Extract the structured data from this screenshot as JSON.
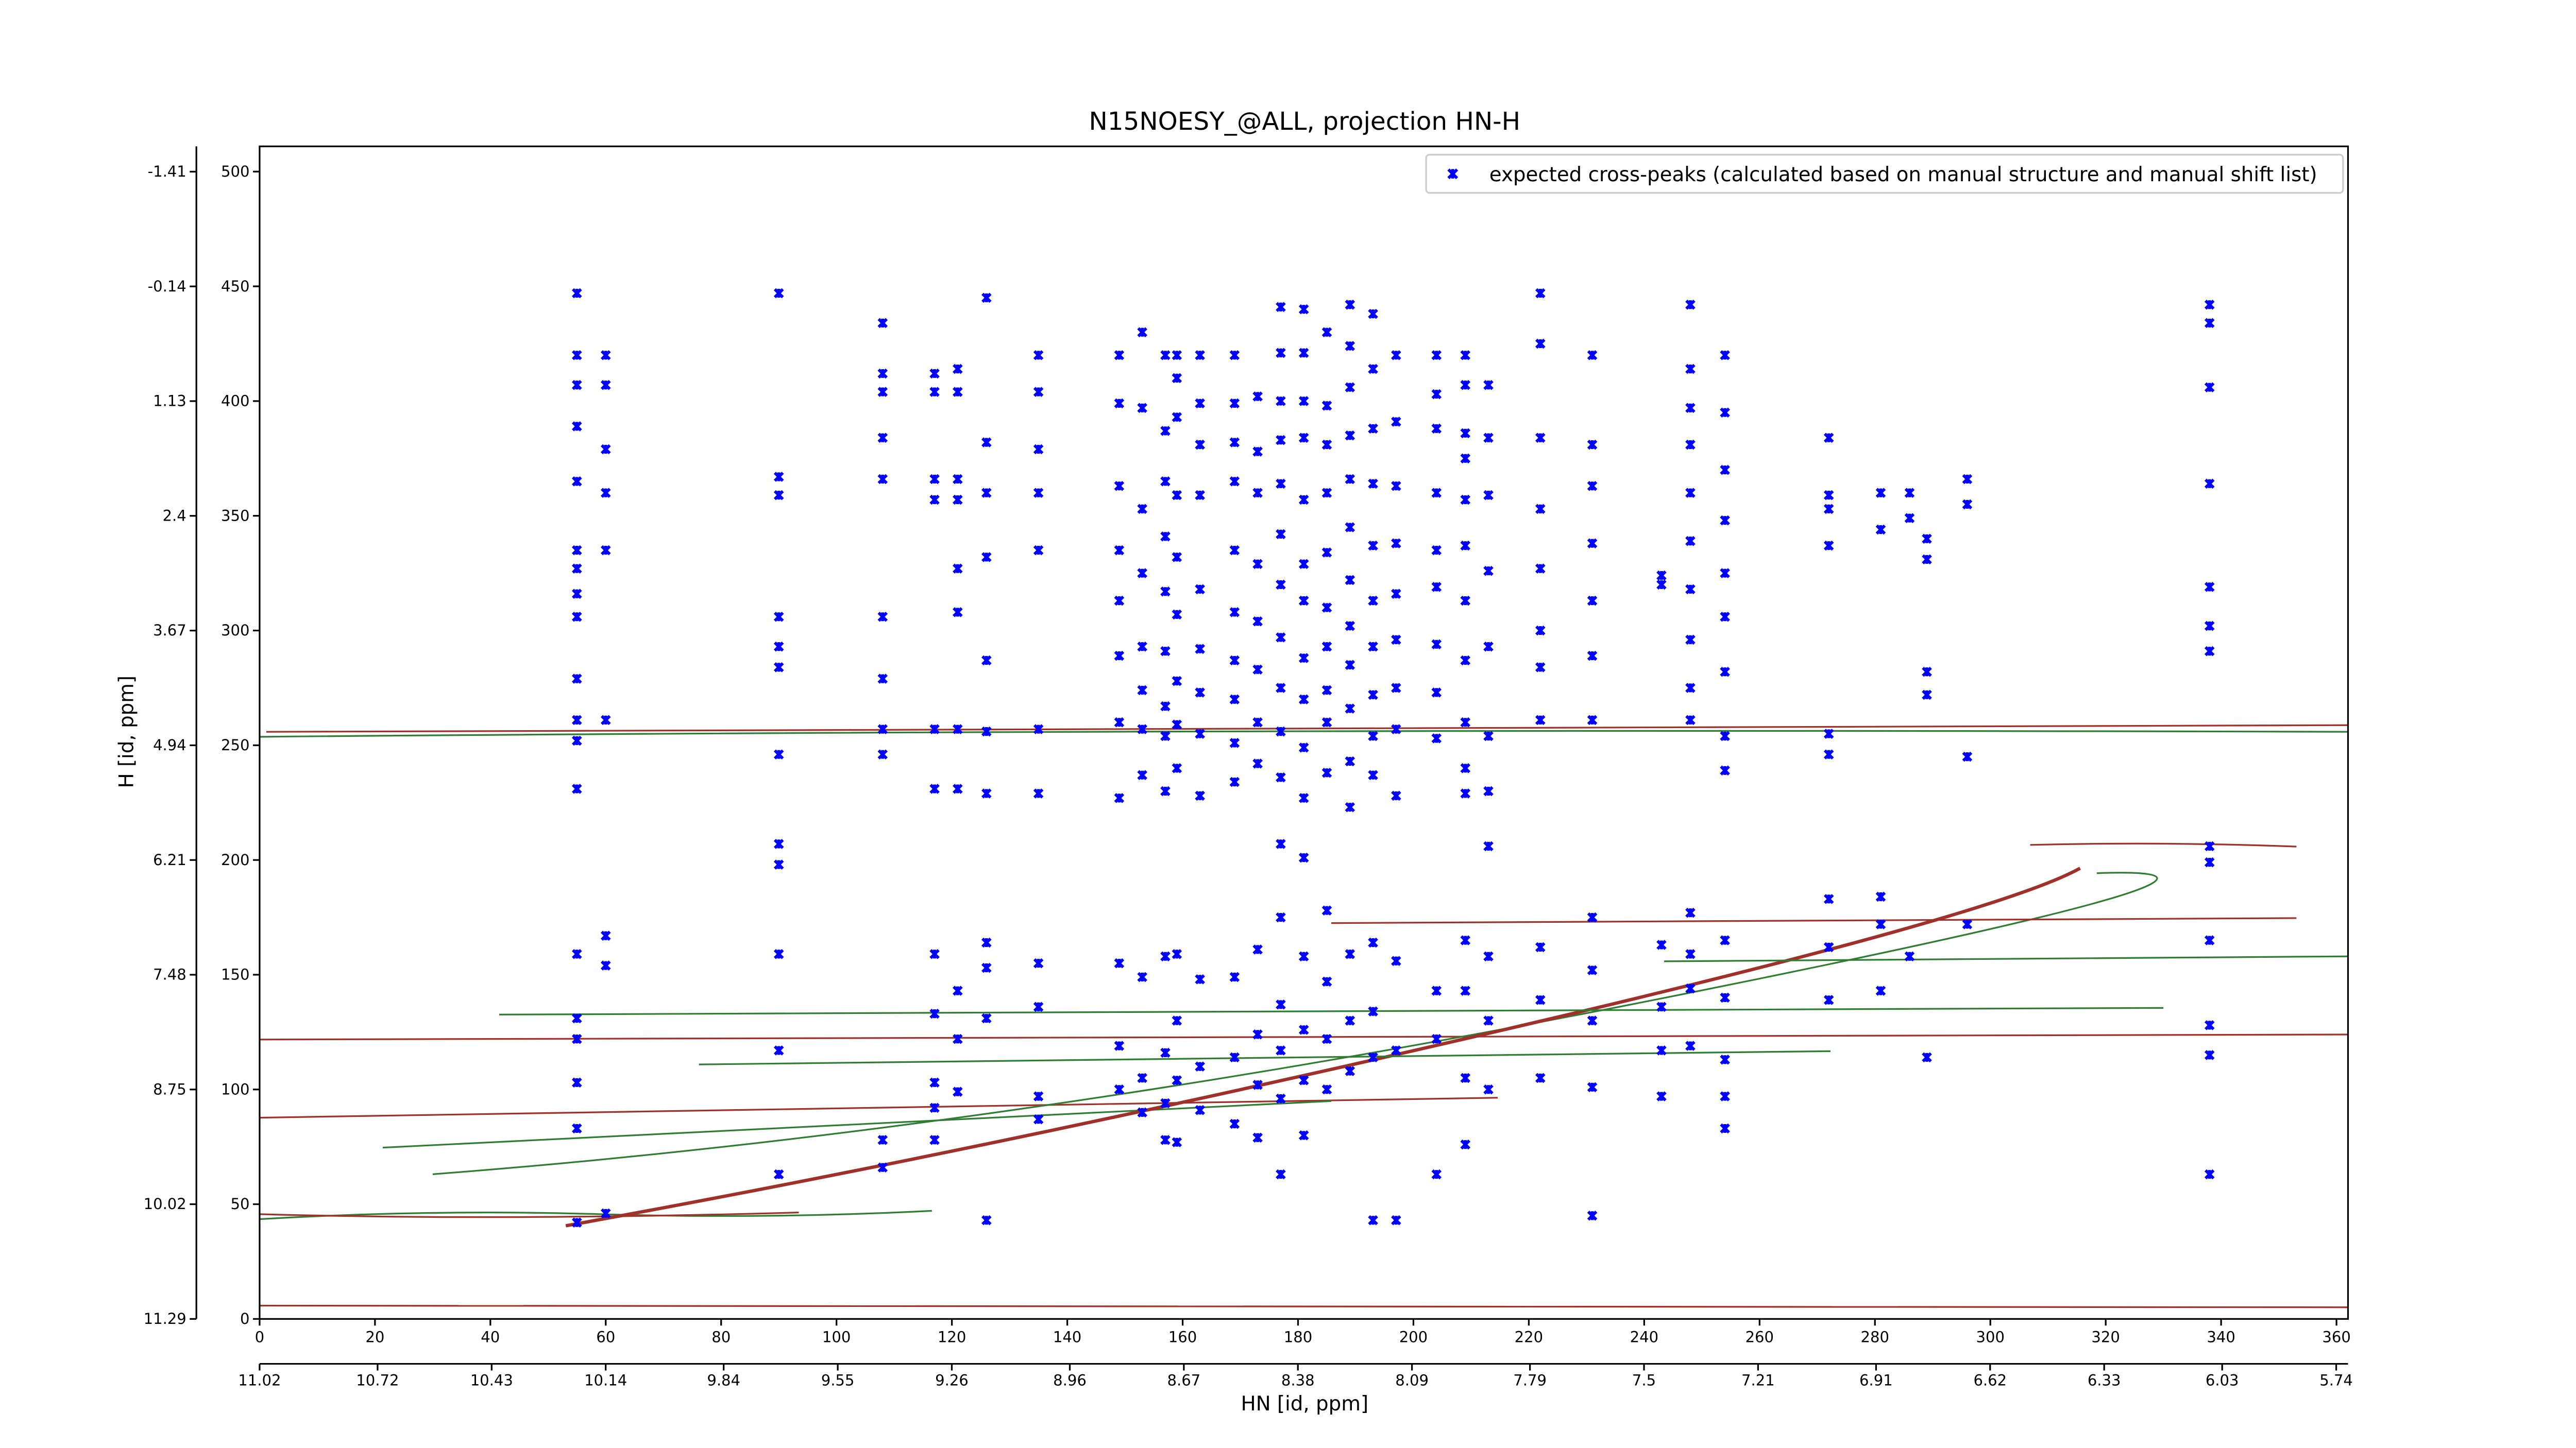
{
  "chart_data": {
    "type": "scatter",
    "title": "N15NOESY_@ALL, projection HN-H",
    "x_label": "HN [id, ppm]",
    "y_label": "H [id, ppm]",
    "xlim": [
      0,
      362
    ],
    "ylim": [
      0,
      511
    ],
    "xticks": [
      0,
      20,
      40,
      60,
      80,
      100,
      120,
      140,
      160,
      180,
      200,
      220,
      240,
      260,
      280,
      300,
      320,
      340,
      360
    ],
    "yticks": [
      0,
      50,
      100,
      150,
      200,
      250,
      300,
      350,
      400,
      450,
      500
    ],
    "x2lim": [
      11.02,
      5.71
    ],
    "x2ticks": [
      11.02,
      10.72,
      10.43,
      10.14,
      9.84,
      9.55,
      9.26,
      8.96,
      8.67,
      8.38,
      8.09,
      7.79,
      7.5,
      7.21,
      6.91,
      6.62,
      6.33,
      6.03,
      5.74
    ],
    "y2lim": [
      11.29,
      -1.69
    ],
    "y2ticks": [
      11.29,
      10.02,
      8.75,
      7.48,
      6.21,
      4.94,
      3.67,
      2.4,
      1.13,
      -0.14,
      -1.41
    ],
    "legend": "upper right",
    "series": [
      {
        "name": "expected cross-peaks (calculated based on manual structure and manual shift list)",
        "color": "#0000ff",
        "columns": [
          {
            "x": 55,
            "y": [
              447,
              420,
              407,
              389,
              365,
              335,
              327,
              316,
              306,
              279,
              261,
              252,
              231,
              159,
              131,
              122,
              103,
              83,
              42
            ]
          },
          {
            "x": 60,
            "y": [
              420,
              407,
              379,
              360,
              335,
              261,
              167,
              154,
              46
            ]
          },
          {
            "x": 90,
            "y": [
              447,
              367,
              359,
              306,
              293,
              284,
              246,
              207,
              198,
              159,
              117,
              63
            ]
          },
          {
            "x": 108,
            "y": [
              434,
              412,
              404,
              384,
              366,
              306,
              279,
              257,
              246,
              78,
              66
            ]
          },
          {
            "x": 117,
            "y": [
              412,
              404,
              366,
              357,
              257,
              231,
              159,
              133,
              103,
              92,
              78
            ]
          },
          {
            "x": 121,
            "y": [
              414,
              404,
              366,
              357,
              327,
              308,
              257,
              231,
              143,
              122,
              99
            ]
          },
          {
            "x": 126,
            "y": [
              445,
              382,
              360,
              332,
              287,
              256,
              229,
              164,
              153,
              131,
              43
            ]
          },
          {
            "x": 135,
            "y": [
              420,
              404,
              379,
              360,
              335,
              257,
              229,
              155,
              136,
              97,
              87
            ]
          },
          {
            "x": 149,
            "y": [
              420,
              399,
              363,
              335,
              313,
              289,
              260,
              227,
              155,
              119,
              100
            ]
          },
          {
            "x": 153,
            "y": [
              430,
              397,
              353,
              325,
              293,
              274,
              257,
              237,
              149,
              105,
              90
            ]
          },
          {
            "x": 157,
            "y": [
              420,
              387,
              365,
              341,
              317,
              291,
              267,
              254,
              230,
              158,
              116,
              94,
              78
            ]
          },
          {
            "x": 159,
            "y": [
              420,
              410,
              393,
              359,
              332,
              307,
              278,
              259,
              240,
              159,
              130,
              104,
              77
            ]
          },
          {
            "x": 163,
            "y": [
              420,
              399,
              381,
              359,
              318,
              292,
              273,
              255,
              228,
              148,
              110,
              91
            ]
          },
          {
            "x": 169,
            "y": [
              420,
              399,
              382,
              365,
              335,
              308,
              287,
              270,
              251,
              234,
              149,
              114,
              85
            ]
          },
          {
            "x": 173,
            "y": [
              402,
              378,
              360,
              329,
              304,
              283,
              260,
              242,
              161,
              124,
              102,
              79
            ]
          },
          {
            "x": 177,
            "y": [
              441,
              421,
              400,
              383,
              364,
              342,
              320,
              297,
              275,
              256,
              236,
              207,
              175,
              137,
              117,
              96,
              63
            ]
          },
          {
            "x": 181,
            "y": [
              440,
              421,
              400,
              384,
              357,
              329,
              313,
              288,
              270,
              249,
              227,
              201,
              158,
              126,
              104,
              80
            ]
          },
          {
            "x": 185,
            "y": [
              430,
              398,
              381,
              360,
              334,
              310,
              293,
              274,
              260,
              238,
              178,
              147,
              122,
              100
            ]
          },
          {
            "x": 189,
            "y": [
              442,
              424,
              406,
              385,
              366,
              345,
              322,
              302,
              285,
              266,
              243,
              223,
              159,
              130,
              108
            ]
          },
          {
            "x": 193,
            "y": [
              438,
              414,
              388,
              364,
              337,
              313,
              293,
              272,
              254,
              237,
              164,
              134,
              114,
              43
            ]
          },
          {
            "x": 197,
            "y": [
              420,
              391,
              363,
              338,
              316,
              296,
              275,
              257,
              228,
              156,
              117,
              43
            ]
          },
          {
            "x": 204,
            "y": [
              420,
              403,
              388,
              360,
              335,
              319,
              294,
              273,
              253,
              143,
              122,
              63
            ]
          },
          {
            "x": 209,
            "y": [
              420,
              407,
              386,
              375,
              357,
              337,
              313,
              287,
              260,
              240,
              229,
              165,
              143,
              105,
              76
            ]
          },
          {
            "x": 213,
            "y": [
              407,
              384,
              359,
              326,
              293,
              254,
              230,
              206,
              158,
              130,
              100
            ]
          },
          {
            "x": 222,
            "y": [
              447,
              425,
              384,
              353,
              327,
              300,
              284,
              261,
              162,
              139,
              105
            ]
          },
          {
            "x": 231,
            "y": [
              420,
              381,
              363,
              338,
              313,
              289,
              261,
              175,
              152,
              130,
              101,
              45
            ]
          },
          {
            "x": 243,
            "y": [
              324,
              320,
              163,
              136,
              117,
              97
            ]
          },
          {
            "x": 248,
            "y": [
              442,
              414,
              397,
              381,
              360,
              339,
              318,
              296,
              275,
              261,
              177,
              159,
              144,
              119
            ]
          },
          {
            "x": 254,
            "y": [
              420,
              395,
              370,
              348,
              325,
              306,
              282,
              254,
              239,
              165,
              140,
              113,
              97,
              83
            ]
          },
          {
            "x": 272,
            "y": [
              384,
              359,
              353,
              337,
              255,
              246,
              183,
              162,
              139
            ]
          },
          {
            "x": 281,
            "y": [
              360,
              344,
              184,
              172,
              143
            ]
          },
          {
            "x": 286,
            "y": [
              360,
              349,
              158
            ]
          },
          {
            "x": 289,
            "y": [
              340,
              331,
              282,
              272,
              114
            ]
          },
          {
            "x": 296,
            "y": [
              366,
              355,
              245,
              172
            ]
          },
          {
            "x": 338,
            "y": [
              442,
              434,
              406,
              364,
              319,
              302,
              291,
              206,
              199,
              165,
              128,
              115,
              63
            ]
          }
        ]
      }
    ]
  }
}
